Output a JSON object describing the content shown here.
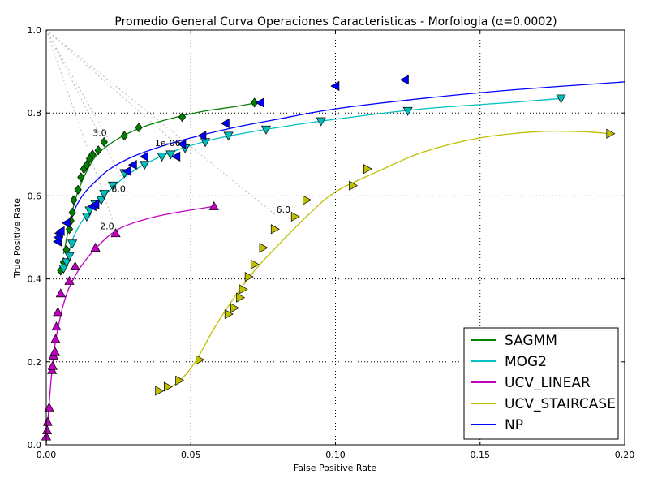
{
  "chart_data": {
    "type": "line",
    "title": "Promedio General Curva Operaciones Caracteristicas - Morfologia (α=0.0002)",
    "xlabel": "False Positive Rate",
    "ylabel": "True Positive Rate",
    "xlim": [
      0.0,
      0.2
    ],
    "ylim": [
      0.0,
      1.0
    ],
    "x_ticks": [
      "0.00",
      "0.05",
      "0.10",
      "0.15",
      "0.20"
    ],
    "y_ticks": [
      "0.0",
      "0.2",
      "0.4",
      "0.6",
      "0.8",
      "1.0"
    ],
    "grid": true,
    "legend_position": "lower-right",
    "series": [
      {
        "name": "SAGMM",
        "color": "#008000",
        "marker": "diamond",
        "curve": [
          [
            0.006,
            0.46
          ],
          [
            0.008,
            0.53
          ],
          [
            0.01,
            0.59
          ],
          [
            0.013,
            0.645
          ],
          [
            0.017,
            0.695
          ],
          [
            0.022,
            0.725
          ],
          [
            0.028,
            0.75
          ],
          [
            0.035,
            0.77
          ],
          [
            0.045,
            0.79
          ],
          [
            0.055,
            0.805
          ],
          [
            0.065,
            0.815
          ],
          [
            0.073,
            0.825
          ]
        ],
        "points": [
          [
            0.005,
            0.42
          ],
          [
            0.006,
            0.44
          ],
          [
            0.007,
            0.47
          ],
          [
            0.008,
            0.52
          ],
          [
            0.0085,
            0.54
          ],
          [
            0.009,
            0.56
          ],
          [
            0.0095,
            0.59
          ],
          [
            0.011,
            0.615
          ],
          [
            0.012,
            0.645
          ],
          [
            0.013,
            0.665
          ],
          [
            0.014,
            0.675
          ],
          [
            0.015,
            0.69
          ],
          [
            0.016,
            0.7
          ],
          [
            0.018,
            0.71
          ],
          [
            0.02,
            0.73
          ],
          [
            0.027,
            0.745
          ],
          [
            0.032,
            0.765
          ],
          [
            0.047,
            0.79
          ],
          [
            0.072,
            0.825
          ]
        ]
      },
      {
        "name": "MOG2",
        "color": "#00bfbf",
        "marker": "triangle-down",
        "curve": [
          [
            0.006,
            0.42
          ],
          [
            0.008,
            0.47
          ],
          [
            0.01,
            0.51
          ],
          [
            0.014,
            0.555
          ],
          [
            0.02,
            0.6
          ],
          [
            0.027,
            0.645
          ],
          [
            0.035,
            0.68
          ],
          [
            0.045,
            0.71
          ],
          [
            0.06,
            0.74
          ],
          [
            0.08,
            0.765
          ],
          [
            0.1,
            0.785
          ],
          [
            0.13,
            0.81
          ],
          [
            0.16,
            0.825
          ],
          [
            0.178,
            0.835
          ]
        ],
        "points": [
          [
            0.006,
            0.425
          ],
          [
            0.007,
            0.44
          ],
          [
            0.008,
            0.455
          ],
          [
            0.009,
            0.485
          ],
          [
            0.014,
            0.55
          ],
          [
            0.015,
            0.565
          ],
          [
            0.017,
            0.58
          ],
          [
            0.019,
            0.59
          ],
          [
            0.02,
            0.605
          ],
          [
            0.023,
            0.625
          ],
          [
            0.027,
            0.655
          ],
          [
            0.034,
            0.675
          ],
          [
            0.04,
            0.695
          ],
          [
            0.043,
            0.7
          ],
          [
            0.048,
            0.715
          ],
          [
            0.055,
            0.73
          ],
          [
            0.063,
            0.745
          ],
          [
            0.076,
            0.76
          ],
          [
            0.095,
            0.78
          ],
          [
            0.125,
            0.805
          ],
          [
            0.178,
            0.835
          ]
        ]
      },
      {
        "name": "UCV_LINEAR",
        "color": "#bf00bf",
        "marker": "triangle-up",
        "curve": [
          [
            0.0,
            0.0
          ],
          [
            0.001,
            0.1
          ],
          [
            0.002,
            0.18
          ],
          [
            0.003,
            0.24
          ],
          [
            0.004,
            0.28
          ],
          [
            0.006,
            0.34
          ],
          [
            0.008,
            0.38
          ],
          [
            0.012,
            0.43
          ],
          [
            0.018,
            0.48
          ],
          [
            0.025,
            0.52
          ],
          [
            0.035,
            0.545
          ],
          [
            0.045,
            0.56
          ],
          [
            0.058,
            0.575
          ]
        ],
        "points": [
          [
            0.0,
            0.02
          ],
          [
            0.0003,
            0.035
          ],
          [
            0.0005,
            0.055
          ],
          [
            0.001,
            0.09
          ],
          [
            0.002,
            0.18
          ],
          [
            0.0022,
            0.19
          ],
          [
            0.0025,
            0.215
          ],
          [
            0.003,
            0.225
          ],
          [
            0.0032,
            0.255
          ],
          [
            0.0035,
            0.285
          ],
          [
            0.004,
            0.32
          ],
          [
            0.005,
            0.365
          ],
          [
            0.008,
            0.395
          ],
          [
            0.01,
            0.43
          ],
          [
            0.017,
            0.475
          ],
          [
            0.024,
            0.51
          ],
          [
            0.058,
            0.575
          ]
        ]
      },
      {
        "name": "UCV_STAIRCASE",
        "color": "#bfbf00",
        "marker": "triangle-right",
        "curve": [
          [
            0.038,
            0.13
          ],
          [
            0.042,
            0.135
          ],
          [
            0.047,
            0.16
          ],
          [
            0.052,
            0.205
          ],
          [
            0.058,
            0.28
          ],
          [
            0.065,
            0.355
          ],
          [
            0.072,
            0.42
          ],
          [
            0.08,
            0.48
          ],
          [
            0.09,
            0.55
          ],
          [
            0.1,
            0.61
          ],
          [
            0.115,
            0.66
          ],
          [
            0.13,
            0.705
          ],
          [
            0.15,
            0.74
          ],
          [
            0.17,
            0.755
          ],
          [
            0.185,
            0.755
          ],
          [
            0.195,
            0.75
          ]
        ],
        "points": [
          [
            0.039,
            0.13
          ],
          [
            0.042,
            0.14
          ],
          [
            0.046,
            0.155
          ],
          [
            0.053,
            0.205
          ],
          [
            0.063,
            0.315
          ],
          [
            0.065,
            0.33
          ],
          [
            0.067,
            0.355
          ],
          [
            0.068,
            0.375
          ],
          [
            0.07,
            0.405
          ],
          [
            0.072,
            0.435
          ],
          [
            0.075,
            0.475
          ],
          [
            0.079,
            0.52
          ],
          [
            0.086,
            0.55
          ],
          [
            0.09,
            0.59
          ],
          [
            0.106,
            0.625
          ],
          [
            0.111,
            0.665
          ],
          [
            0.195,
            0.75
          ]
        ]
      },
      {
        "name": "NP",
        "color": "#0000ff",
        "marker": "triangle-left",
        "curve": [
          [
            0.008,
            0.53
          ],
          [
            0.01,
            0.57
          ],
          [
            0.013,
            0.605
          ],
          [
            0.017,
            0.635
          ],
          [
            0.022,
            0.665
          ],
          [
            0.03,
            0.695
          ],
          [
            0.04,
            0.72
          ],
          [
            0.05,
            0.74
          ],
          [
            0.065,
            0.765
          ],
          [
            0.08,
            0.785
          ],
          [
            0.1,
            0.81
          ],
          [
            0.13,
            0.835
          ],
          [
            0.16,
            0.855
          ],
          [
            0.2,
            0.875
          ]
        ],
        "points": [
          [
            0.004,
            0.49
          ],
          [
            0.0042,
            0.5
          ],
          [
            0.0045,
            0.51
          ],
          [
            0.005,
            0.515
          ],
          [
            0.007,
            0.535
          ],
          [
            0.016,
            0.575
          ],
          [
            0.017,
            0.58
          ],
          [
            0.028,
            0.66
          ],
          [
            0.03,
            0.675
          ],
          [
            0.034,
            0.695
          ],
          [
            0.045,
            0.695
          ],
          [
            0.047,
            0.725
          ],
          [
            0.054,
            0.745
          ],
          [
            0.062,
            0.775
          ],
          [
            0.074,
            0.825
          ],
          [
            0.1,
            0.865
          ],
          [
            0.124,
            0.88
          ]
        ]
      }
    ],
    "annotations": [
      {
        "text": "3.0",
        "x": 0.0185,
        "y": 0.745
      },
      {
        "text": "1e-06",
        "x": 0.042,
        "y": 0.72
      },
      {
        "text": "8.0",
        "x": 0.025,
        "y": 0.61
      },
      {
        "text": "2.0",
        "x": 0.021,
        "y": 0.52
      },
      {
        "text": "6.0",
        "x": 0.082,
        "y": 0.56
      }
    ],
    "reference_lines": [
      {
        "from": [
          0.0,
          1.0
        ],
        "to": [
          0.022,
          0.73
        ]
      },
      {
        "from": [
          0.0,
          1.0
        ],
        "to": [
          0.045,
          0.725
        ]
      },
      {
        "from": [
          0.0,
          1.0
        ],
        "to": [
          0.027,
          0.63
        ]
      },
      {
        "from": [
          0.0,
          1.0
        ],
        "to": [
          0.023,
          0.54
        ]
      },
      {
        "from": [
          0.0,
          1.0
        ],
        "to": [
          0.08,
          0.55
        ]
      }
    ]
  }
}
